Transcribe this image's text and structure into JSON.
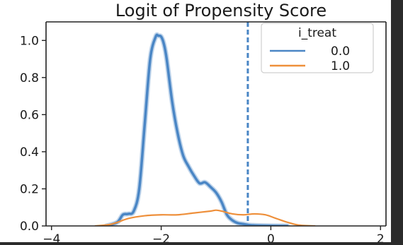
{
  "chart_data": {
    "type": "line",
    "title": "Logit of Propensity Score",
    "xlabel": "",
    "ylabel": "",
    "xlim": [
      -4.1,
      2.1
    ],
    "ylim": [
      0.0,
      1.1
    ],
    "xticks": [
      -4,
      -2,
      0,
      2
    ],
    "xtick_labels": [
      "−4",
      "−2",
      "0",
      "2"
    ],
    "yticks": [
      0.0,
      0.2,
      0.4,
      0.6,
      0.8,
      1.0
    ],
    "ytick_labels": [
      "0.0",
      "0.2",
      "0.4",
      "0.6",
      "0.8",
      "1.0"
    ],
    "grid": false,
    "legend": {
      "title": "i_treat",
      "placement": "top-right"
    },
    "vline": {
      "x": -0.42,
      "style": "dashed",
      "color": "#4a86c5"
    },
    "series": [
      {
        "name": "0.0",
        "color": "#4a86c5",
        "x": [
          -3.0,
          -2.8,
          -2.7,
          -2.6,
          -2.5,
          -2.4,
          -2.3,
          -2.2,
          -2.1,
          -2.05,
          -2.0,
          -1.95,
          -1.9,
          -1.8,
          -1.7,
          -1.6,
          -1.5,
          -1.4,
          -1.3,
          -1.2,
          -1.1,
          -1.0,
          -0.9,
          -0.8,
          -0.7,
          -0.6,
          -0.5,
          -0.4,
          -0.3,
          -0.2,
          0.0,
          0.3
        ],
        "y": [
          0.0,
          0.02,
          0.06,
          0.065,
          0.08,
          0.2,
          0.55,
          0.9,
          1.02,
          1.025,
          1.02,
          0.98,
          0.9,
          0.67,
          0.5,
          0.38,
          0.32,
          0.27,
          0.23,
          0.235,
          0.21,
          0.18,
          0.13,
          0.06,
          0.03,
          0.015,
          0.01,
          0.005,
          0.003,
          0.002,
          0.001,
          0.0
        ]
      },
      {
        "name": "1.0",
        "color": "#ee8f3a",
        "x": [
          -3.2,
          -2.9,
          -2.6,
          -2.3,
          -2.0,
          -1.7,
          -1.4,
          -1.1,
          -1.0,
          -0.9,
          -0.7,
          -0.5,
          -0.3,
          -0.1,
          0.1,
          0.3,
          0.5,
          0.8
        ],
        "y": [
          0.0,
          0.01,
          0.04,
          0.055,
          0.06,
          0.06,
          0.07,
          0.08,
          0.085,
          0.08,
          0.065,
          0.06,
          0.065,
          0.06,
          0.04,
          0.02,
          0.005,
          0.0
        ]
      }
    ]
  }
}
